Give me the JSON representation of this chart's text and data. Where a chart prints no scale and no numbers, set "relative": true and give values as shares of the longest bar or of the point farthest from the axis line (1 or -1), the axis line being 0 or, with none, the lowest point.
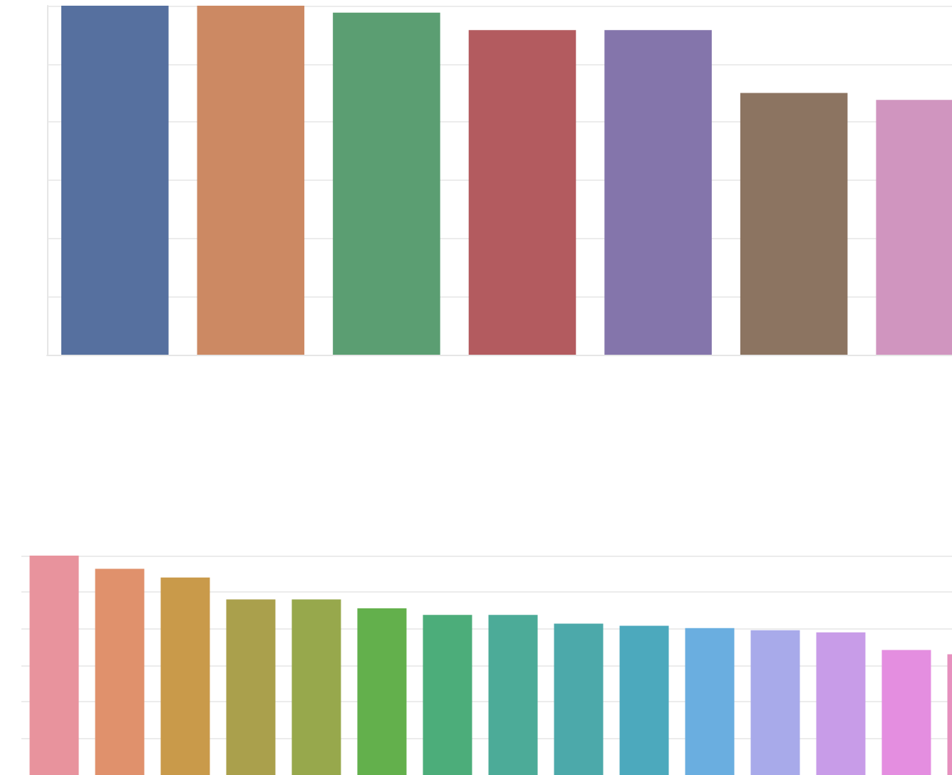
{
  "chart_data": [
    {
      "type": "bar",
      "relative": true,
      "categories": [
        null,
        null,
        null,
        null,
        null,
        null,
        null
      ],
      "values": [
        1,
        1,
        0.98,
        0.93,
        0.93,
        0.75,
        0.73
      ],
      "colors": [
        "#56709f",
        "#cc8963",
        "#5b9e72",
        "#b35b5f",
        "#8475ab",
        "#8c7461",
        "#d095bf"
      ],
      "grid": "y"
    },
    {
      "type": "bar",
      "relative": true,
      "categories": [
        null,
        null,
        null,
        null,
        null,
        null,
        null,
        null,
        null,
        null,
        null,
        null,
        null,
        null,
        null
      ],
      "values": [
        1,
        0.94,
        0.9,
        0.8,
        0.8,
        0.76,
        0.73,
        0.73,
        0.69,
        0.68,
        0.67,
        0.66,
        0.65,
        0.57,
        0.55
      ],
      "colors": [
        "#e8939d",
        "#e0916c",
        "#c99a4a",
        "#aaa04c",
        "#97a84c",
        "#63b04c",
        "#4cad7a",
        "#4cab98",
        "#4ca9aa",
        "#4ca9bd",
        "#6aaee0",
        "#a8aaea",
        "#c89ce8",
        "#e48ee0",
        "#e690be"
      ],
      "grid": "y"
    }
  ]
}
